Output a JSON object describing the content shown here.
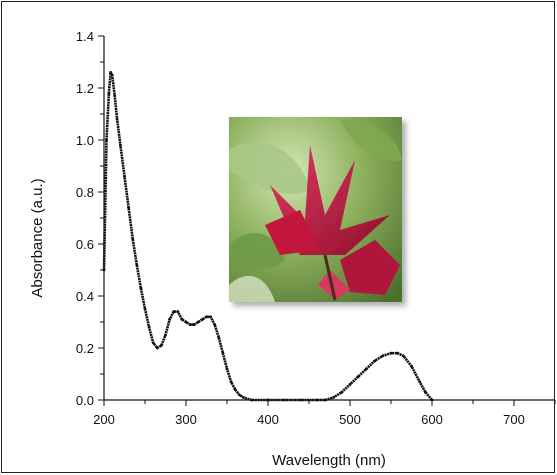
{
  "chart_data": {
    "type": "scatter",
    "title": "",
    "xlabel": "Wavelength (nm)",
    "ylabel": "Absorbance (a.u.)",
    "xlim": [
      200,
      750
    ],
    "ylim": [
      0.0,
      1.4
    ],
    "x_ticks": [
      200,
      300,
      400,
      500,
      600,
      700
    ],
    "x_tick_labels": [
      "200",
      "300",
      "400",
      "500",
      "600",
      "700"
    ],
    "y_ticks": [
      0.0,
      0.2,
      0.4,
      0.6,
      0.8,
      1.0,
      1.2,
      1.4
    ],
    "y_tick_labels": [
      "0.0",
      "0.2",
      "0.4",
      "0.6",
      "0.8",
      "1.0",
      "1.2",
      "1.4"
    ],
    "grid": false,
    "legend": "none",
    "series": [
      {
        "color": "#111111",
        "points": [
          [
            200,
            0.5
          ],
          [
            203,
            1.0
          ],
          [
            206,
            1.18
          ],
          [
            208,
            1.26
          ],
          [
            210,
            1.25
          ],
          [
            213,
            1.17
          ],
          [
            216,
            1.08
          ],
          [
            220,
            0.98
          ],
          [
            225,
            0.86
          ],
          [
            230,
            0.74
          ],
          [
            235,
            0.62
          ],
          [
            240,
            0.52
          ],
          [
            245,
            0.43
          ],
          [
            250,
            0.35
          ],
          [
            255,
            0.28
          ],
          [
            260,
            0.22
          ],
          [
            265,
            0.2
          ],
          [
            270,
            0.21
          ],
          [
            275,
            0.25
          ],
          [
            280,
            0.31
          ],
          [
            285,
            0.34
          ],
          [
            290,
            0.34
          ],
          [
            295,
            0.31
          ],
          [
            300,
            0.3
          ],
          [
            305,
            0.29
          ],
          [
            310,
            0.29
          ],
          [
            315,
            0.3
          ],
          [
            320,
            0.31
          ],
          [
            325,
            0.32
          ],
          [
            330,
            0.32
          ],
          [
            335,
            0.29
          ],
          [
            340,
            0.24
          ],
          [
            345,
            0.18
          ],
          [
            350,
            0.12
          ],
          [
            355,
            0.07
          ],
          [
            360,
            0.04
          ],
          [
            365,
            0.02
          ],
          [
            370,
            0.01
          ],
          [
            380,
            0.0
          ],
          [
            400,
            0.0
          ],
          [
            420,
            0.0
          ],
          [
            440,
            0.0
          ],
          [
            460,
            0.0
          ],
          [
            470,
            0.0
          ],
          [
            480,
            0.01
          ],
          [
            490,
            0.03
          ],
          [
            500,
            0.06
          ],
          [
            510,
            0.09
          ],
          [
            520,
            0.12
          ],
          [
            530,
            0.15
          ],
          [
            540,
            0.17
          ],
          [
            550,
            0.18
          ],
          [
            558,
            0.18
          ],
          [
            565,
            0.17
          ],
          [
            575,
            0.13
          ],
          [
            585,
            0.07
          ],
          [
            592,
            0.03
          ],
          [
            600,
            0.0
          ]
        ]
      }
    ]
  },
  "colors": {
    "curve": "#111111",
    "axis": "#111111",
    "petal": "#c2153d",
    "leaf": "#5e8c3a"
  },
  "inset_image": "red roselle flower on green foliage"
}
